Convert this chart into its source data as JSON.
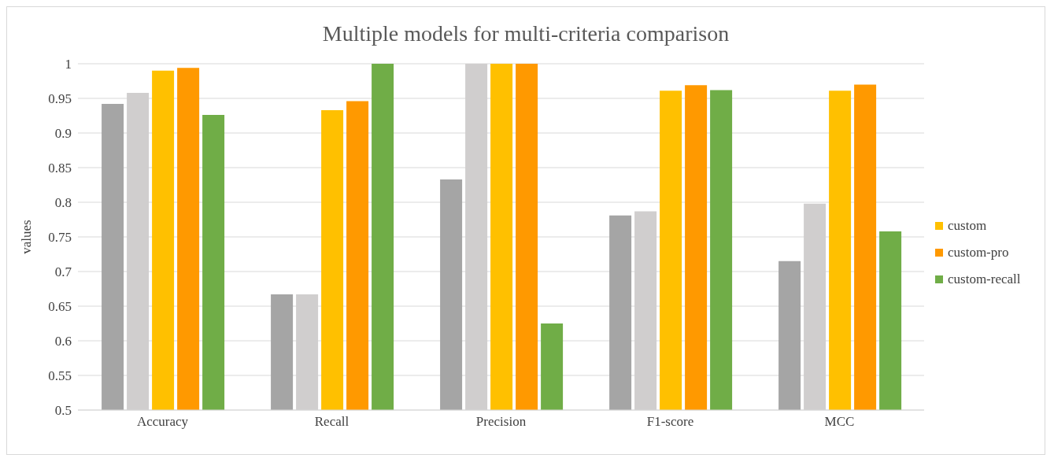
{
  "chart_data": {
    "type": "bar",
    "title": "Multiple models for multi-criteria comparison",
    "ylabel": "values",
    "categories": [
      "Accuracy",
      "Recall",
      "Precision",
      "F1-score",
      "MCC"
    ],
    "series": [
      {
        "color": "#a5a5a5",
        "values": [
          0.942,
          0.667,
          0.833,
          0.781,
          0.715
        ]
      },
      {
        "color": "#d0cece",
        "values": [
          0.958,
          0.667,
          1,
          0.787,
          0.798
        ]
      },
      {
        "name": "custom",
        "color": "#ffc000",
        "values": [
          0.99,
          0.933,
          1,
          0.961,
          0.961
        ]
      },
      {
        "name": "custom-pro",
        "color": "#ff9900",
        "values": [
          0.994,
          0.946,
          1,
          0.969,
          0.97
        ]
      },
      {
        "name": "custom-recall",
        "color": "#70ad47",
        "values": [
          0.926,
          1,
          0.625,
          0.962,
          0.758
        ]
      }
    ],
    "ylim": [
      0.5,
      1
    ],
    "yticks": [
      0.5,
      0.55,
      0.6,
      0.65,
      0.7,
      0.75,
      0.8,
      0.85,
      0.9,
      0.95,
      1
    ],
    "grid": "y",
    "legend": "right"
  }
}
